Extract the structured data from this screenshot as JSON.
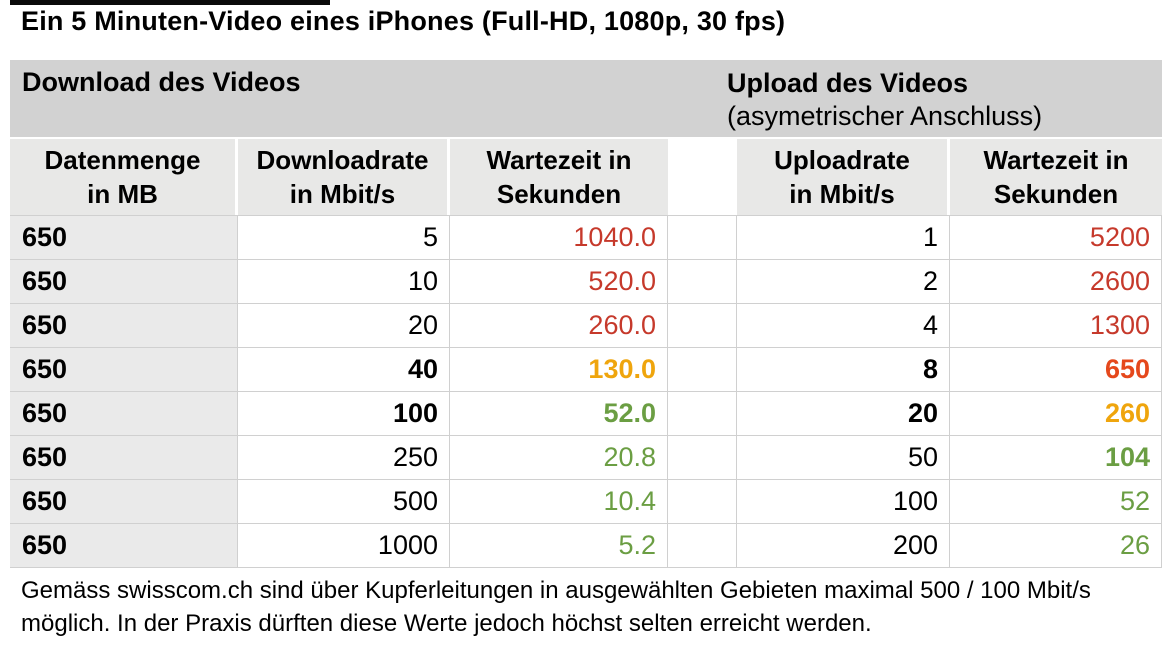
{
  "page": {
    "title": "Ein 5 Minuten-Video eines iPhones (Full-HD, 1080p, 30 fps)",
    "footer": "Gemäss swisscom.ch sind über Kupferleitungen in ausgewählten Gebieten maximal 500 / 100 Mbit/s\nmöglich. In der Praxis dürften diese Werte jedoch höchst selten erreicht werden."
  },
  "colors": {
    "red": "#c6392b",
    "redorange": "#e5481c",
    "amber": "#efa50d",
    "green": "#6b9e43",
    "band_bg": "#d2d2d2",
    "header_bg": "#e8e8e7",
    "col1_bg": "#eaeaea",
    "border": "#d0d0d0"
  },
  "table": {
    "band": {
      "download": "Download des Videos",
      "upload": "Upload des Videos",
      "upload_sub": "(asymetrischer Anschluss)"
    },
    "headers": {
      "datenmenge": "Datenmenge\nin MB",
      "downloadrate": "Downloadrate\nin Mbit/s",
      "wartezeit_download": "Wartezeit in\nSekunden",
      "uploadrate": "Uploadrate\nin Mbit/s",
      "wartezeit_upload": "Wartezeit in\nSekunden"
    },
    "rows": [
      {
        "mb": "650",
        "down_rate": "5",
        "down_rate_status": "black",
        "down_wait": "1040.0",
        "down_wait_status": "red",
        "up_rate": "1",
        "up_rate_status": "black",
        "up_wait": "5200",
        "up_wait_status": "red"
      },
      {
        "mb": "650",
        "down_rate": "10",
        "down_rate_status": "black",
        "down_wait": "520.0",
        "down_wait_status": "red",
        "up_rate": "2",
        "up_rate_status": "black",
        "up_wait": "2600",
        "up_wait_status": "red"
      },
      {
        "mb": "650",
        "down_rate": "20",
        "down_rate_status": "black",
        "down_wait": "260.0",
        "down_wait_status": "red",
        "up_rate": "4",
        "up_rate_status": "black",
        "up_wait": "1300",
        "up_wait_status": "red"
      },
      {
        "mb": "650",
        "down_rate": "40",
        "down_rate_status": "black-bold",
        "down_wait": "130.0",
        "down_wait_status": "amber-bold",
        "up_rate": "8",
        "up_rate_status": "black-bold",
        "up_wait": "650",
        "up_wait_status": "redorange-bold"
      },
      {
        "mb": "650",
        "down_rate": "100",
        "down_rate_status": "black-bold",
        "down_wait": "52.0",
        "down_wait_status": "green-bold",
        "up_rate": "20",
        "up_rate_status": "black-bold",
        "up_wait": "260",
        "up_wait_status": "amber-bold"
      },
      {
        "mb": "650",
        "down_rate": "250",
        "down_rate_status": "black",
        "down_wait": "20.8",
        "down_wait_status": "green",
        "up_rate": "50",
        "up_rate_status": "black",
        "up_wait": "104",
        "up_wait_status": "green-bold"
      },
      {
        "mb": "650",
        "down_rate": "500",
        "down_rate_status": "black",
        "down_wait": "10.4",
        "down_wait_status": "green",
        "up_rate": "100",
        "up_rate_status": "black",
        "up_wait": "52",
        "up_wait_status": "green"
      },
      {
        "mb": "650",
        "down_rate": "1000",
        "down_rate_status": "black",
        "down_wait": "5.2",
        "down_wait_status": "green",
        "up_rate": "200",
        "up_rate_status": "black",
        "up_wait": "26",
        "up_wait_status": "green"
      }
    ]
  }
}
